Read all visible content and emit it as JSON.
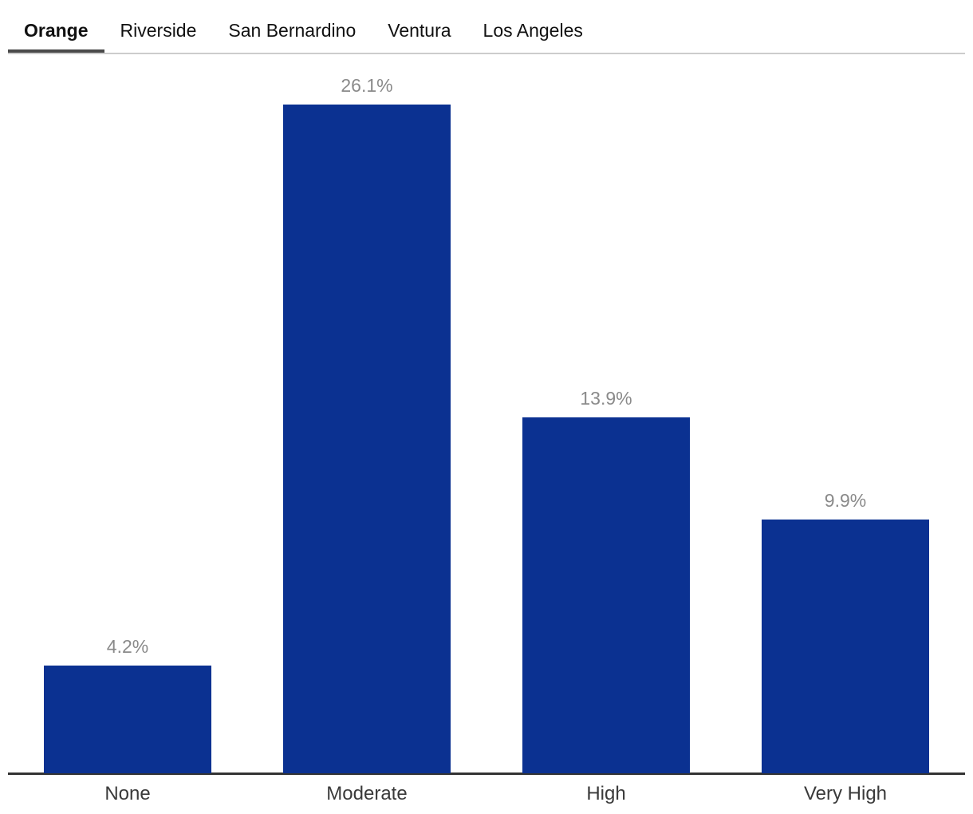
{
  "tabs": {
    "items": [
      {
        "label": "Orange",
        "active": true
      },
      {
        "label": "Riverside",
        "active": false
      },
      {
        "label": "San Bernardino",
        "active": false
      },
      {
        "label": "Ventura",
        "active": false
      },
      {
        "label": "Los Angeles",
        "active": false
      }
    ]
  },
  "chart_data": {
    "type": "bar",
    "title": "",
    "xlabel": "",
    "ylabel": "",
    "categories": [
      "None",
      "Moderate",
      "High",
      "Very High"
    ],
    "values": [
      4.2,
      26.1,
      13.9,
      9.9
    ],
    "value_labels": [
      "4.2%",
      "26.1%",
      "13.9%",
      "9.9%"
    ],
    "ylim": [
      0,
      28
    ],
    "grid": false,
    "legend": false,
    "colors": {
      "bar": "#0B3191",
      "value_label": "#8A8A8A",
      "category_label": "#3A3A3A",
      "axis_line": "#333333",
      "tab_text": "#111111",
      "tab_indicator": "#4A4A4A",
      "tab_border": "#CCCCCC"
    }
  }
}
